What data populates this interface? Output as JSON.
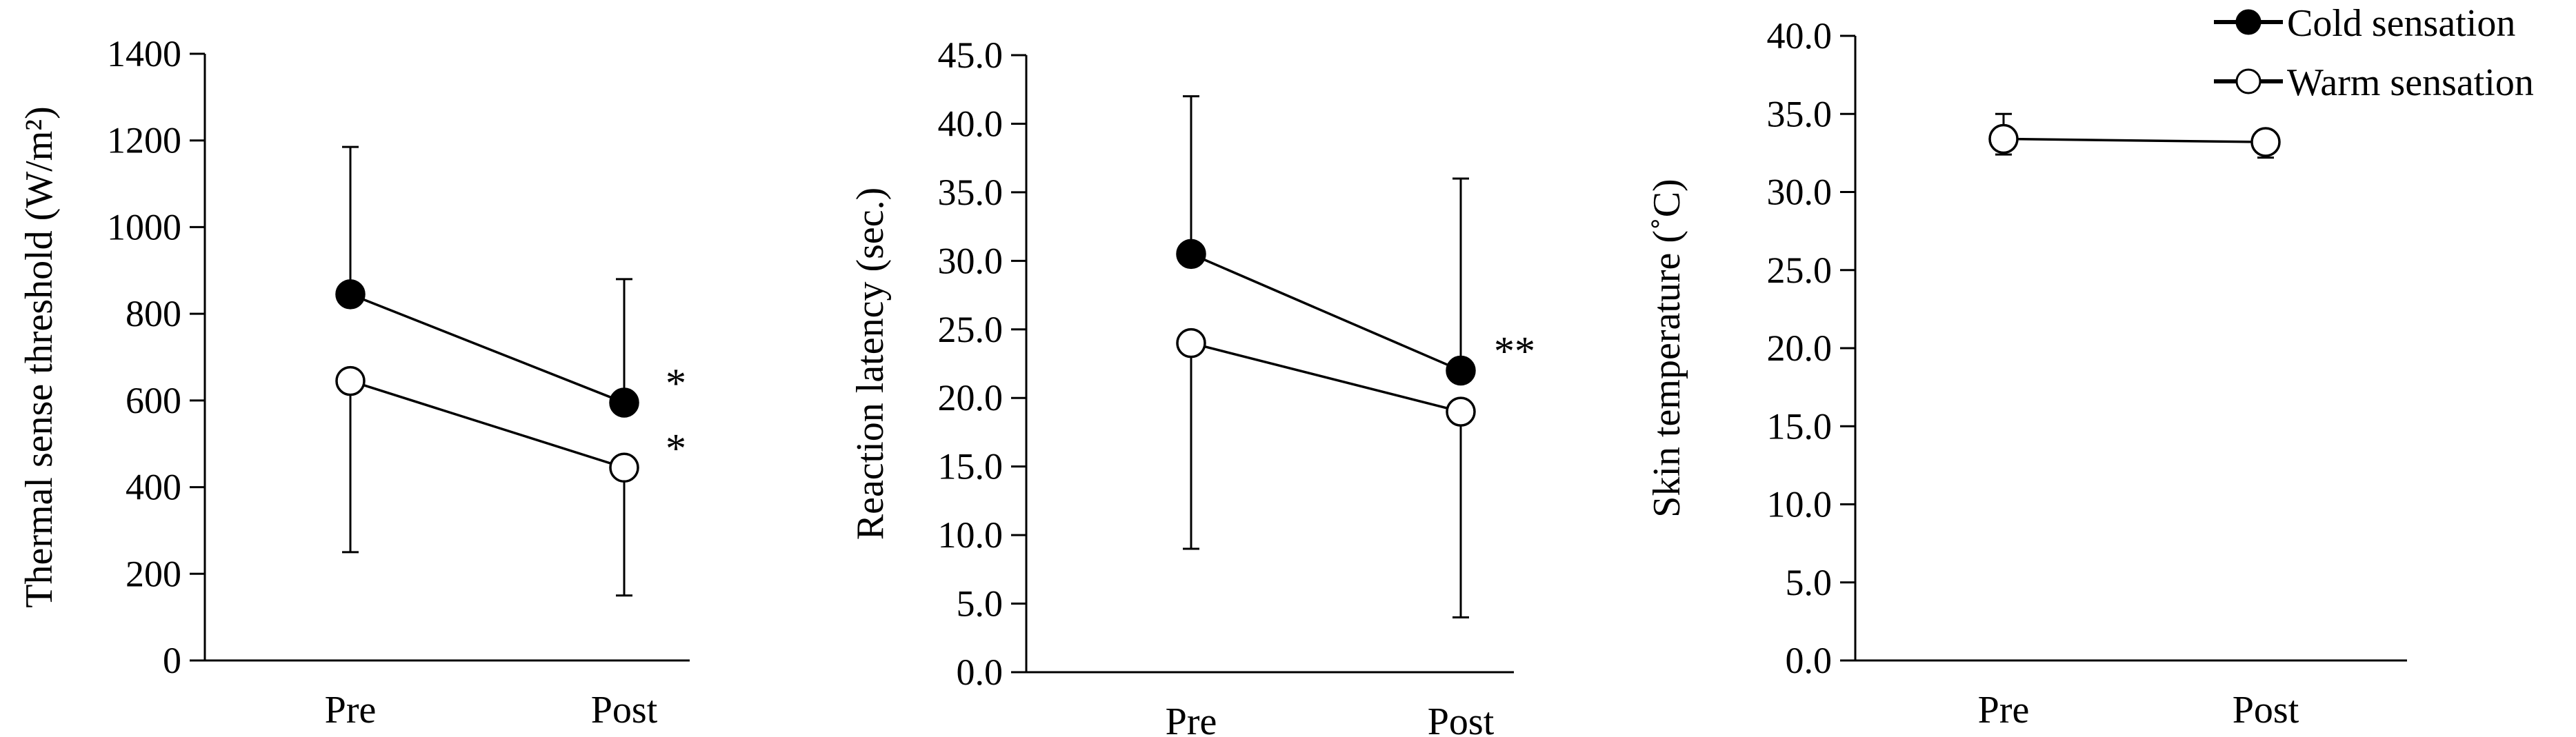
{
  "legend": {
    "position": "top-right",
    "entries": [
      {
        "label": "Cold sensation",
        "marker": "filled-circle"
      },
      {
        "label": "Warm sensation",
        "marker": "open-circle"
      }
    ]
  },
  "chart_data": [
    {
      "type": "line",
      "ylabel": "Thermal sense threshold (W/m²)",
      "ylim": [
        0,
        1400
      ],
      "yticks": [
        0,
        200,
        400,
        600,
        800,
        1000,
        1200,
        1400
      ],
      "ytick_labels": [
        "0",
        "200",
        "400",
        "600",
        "800",
        "1000",
        "1200",
        "1400"
      ],
      "categories": [
        "Pre",
        "Post"
      ],
      "grid": false,
      "series": [
        {
          "name": "Cold sensation",
          "marker": "filled",
          "values": [
            845,
            595
          ],
          "error_plus": [
            340,
            285
          ],
          "error_minus": [
            0,
            0
          ]
        },
        {
          "name": "Warm sensation",
          "marker": "open",
          "values": [
            645,
            445
          ],
          "error_plus": [
            0,
            0
          ],
          "error_minus": [
            395,
            295
          ]
        }
      ],
      "annotations": [
        {
          "text": "*",
          "category": "Post",
          "series": "Cold sensation"
        },
        {
          "text": "*",
          "category": "Post",
          "series": "Warm sensation"
        }
      ]
    },
    {
      "type": "line",
      "ylabel": "Reaction latency (sec.)",
      "ylim": [
        0,
        45
      ],
      "yticks": [
        0,
        5,
        10,
        15,
        20,
        25,
        30,
        35,
        40,
        45
      ],
      "ytick_labels": [
        "0.0",
        "5.0",
        "10.0",
        "15.0",
        "20.0",
        "25.0",
        "30.0",
        "35.0",
        "40.0",
        "45.0"
      ],
      "categories": [
        "Pre",
        "Post"
      ],
      "grid": false,
      "series": [
        {
          "name": "Cold sensation",
          "marker": "filled",
          "values": [
            30.5,
            22
          ],
          "error_plus": [
            11.5,
            14
          ],
          "error_minus": [
            0,
            0
          ]
        },
        {
          "name": "Warm sensation",
          "marker": "open",
          "values": [
            24,
            19
          ],
          "error_plus": [
            0,
            0
          ],
          "error_minus": [
            15,
            15
          ]
        }
      ],
      "annotations": [
        {
          "text": "**",
          "category": "Post",
          "series": "Cold sensation"
        }
      ]
    },
    {
      "type": "line",
      "ylabel": "Skin temperature (˚C)",
      "ylim": [
        0,
        40
      ],
      "yticks": [
        0,
        5,
        10,
        15,
        20,
        25,
        30,
        35,
        40
      ],
      "ytick_labels": [
        "0.0",
        "5.0",
        "10.0",
        "15.0",
        "20.0",
        "25.0",
        "30.0",
        "35.0",
        "40.0"
      ],
      "categories": [
        "Pre",
        "Post"
      ],
      "grid": false,
      "series": [
        {
          "name": "Skin temperature",
          "marker": "open",
          "values": [
            33.4,
            33.2
          ],
          "error_plus": [
            1.6,
            0.7
          ],
          "error_minus": [
            1.0,
            1.0
          ]
        }
      ],
      "annotations": []
    }
  ]
}
